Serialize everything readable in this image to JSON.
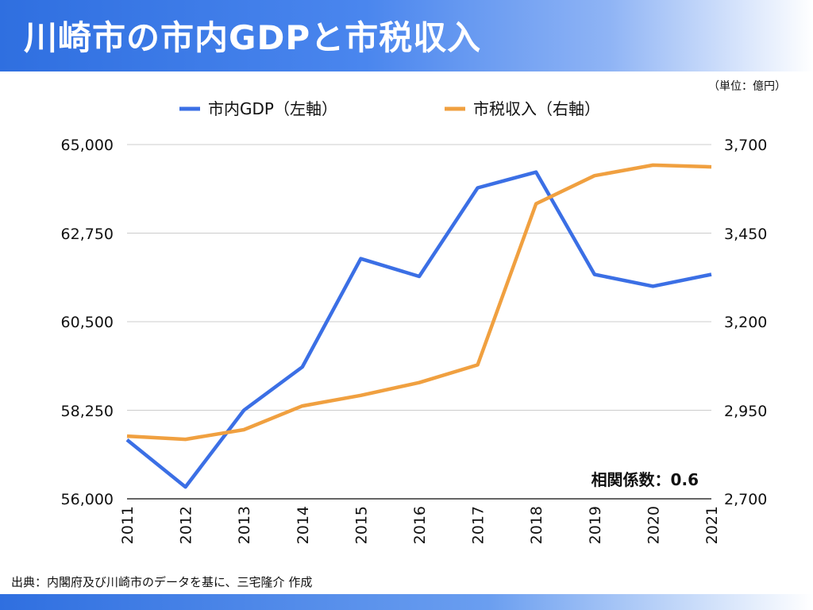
{
  "header": {
    "title": "川崎市の市内GDPと市税収入"
  },
  "unit_note": "（単位：億円）",
  "source": "出典：内閣府及び川崎市のデータを基に、三宅隆介 作成",
  "colors": {
    "gdp": "#3b6fe5",
    "tax": "#f0a040",
    "header": "#2f6fe0"
  },
  "chart_data": {
    "type": "line",
    "x": [
      "2011",
      "2012",
      "2013",
      "2014",
      "2015",
      "2016",
      "2017",
      "2018",
      "2019",
      "2020",
      "2021"
    ],
    "series": [
      {
        "name": "市内GDP（左軸）",
        "axis": "left",
        "values": [
          57500,
          56300,
          58250,
          59350,
          62100,
          61650,
          63900,
          64300,
          61700,
          61400,
          61700
        ]
      },
      {
        "name": "市税収入（右軸）",
        "axis": "right",
        "values": [
          2877,
          2868,
          2895,
          2962,
          2992,
          3028,
          3078,
          3533,
          3612,
          3642,
          3637
        ]
      }
    ],
    "y_left": {
      "min": 56000,
      "max": 65000,
      "ticks": [
        "65,000",
        "62,750",
        "60,500",
        "58,250",
        "56,000"
      ]
    },
    "y_right": {
      "min": 2700,
      "max": 3700,
      "ticks": [
        "3,700",
        "3,450",
        "3,200",
        "2,950",
        "2,700"
      ]
    },
    "grid": true,
    "legend_position": "top",
    "annotation": "相関係数：0.6"
  }
}
